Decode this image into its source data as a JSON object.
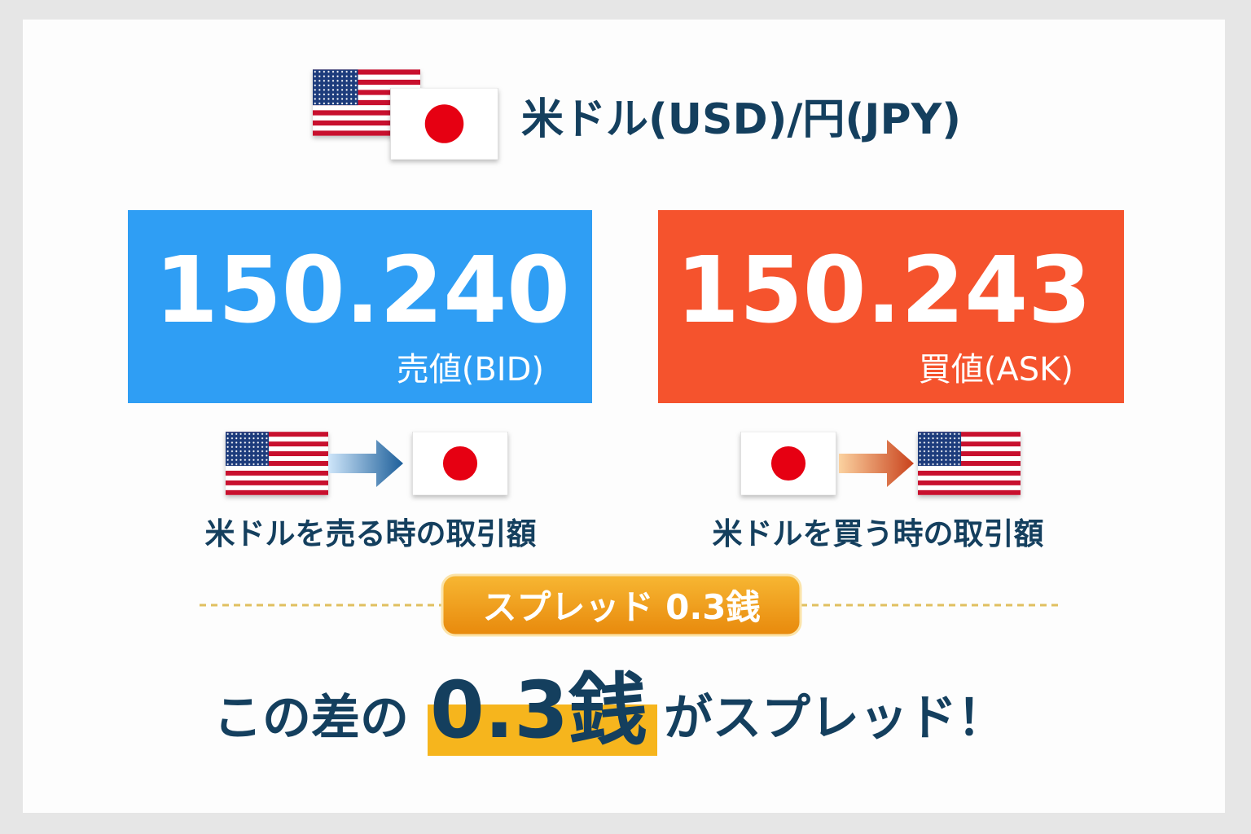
{
  "header": {
    "title": "米ドル(USD)/円(JPY)"
  },
  "quotes": [
    {
      "rate": "150.240",
      "label": "売値(BID)",
      "caption": "米ドルを売る時の取引額"
    },
    {
      "rate": "150.243",
      "label": "買値(ASK)",
      "caption": "米ドルを買う時の取引額"
    }
  ],
  "badge": "スプレッド 0.3銭",
  "summary": {
    "lead": "この差の",
    "highlight": "0.3銭",
    "tail": "がスプレッド！"
  }
}
